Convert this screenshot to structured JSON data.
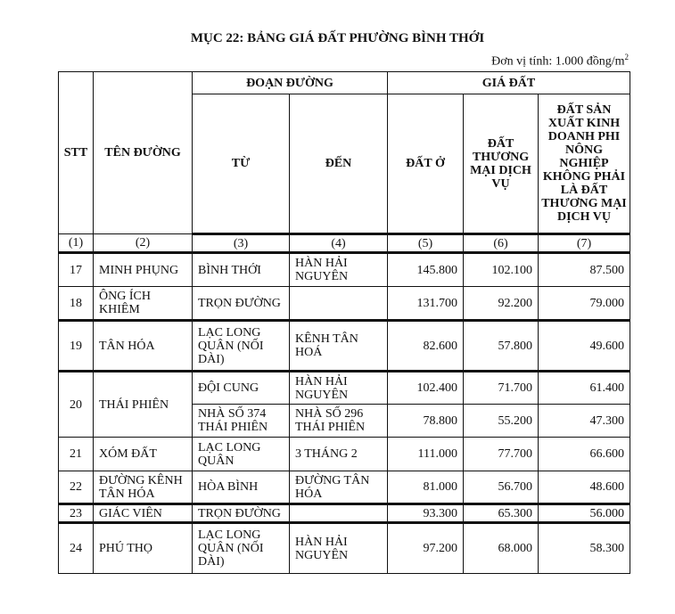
{
  "title": "MỤC 22: BẢNG GIÁ ĐẤT PHƯỜNG BÌNH THỚI",
  "unit": "Đơn vị tính: 1.000 đồng/m",
  "unit_sup": "2",
  "headers": {
    "stt": "STT",
    "ten_duong": "TÊN ĐƯỜNG",
    "doan_duong": "ĐOẠN ĐƯỜNG",
    "gia_dat": "GIÁ ĐẤT",
    "tu": "TỪ",
    "den": "ĐẾN",
    "dat_o": "ĐẤT Ở",
    "dat_tmdv": "ĐẤT THƯƠNG MẠI DỊCH VỤ",
    "dat_sxkd": "ĐẤT SẢN XUẤT KINH DOANH PHI NÔNG NGHIỆP KHÔNG PHẢI LÀ ĐẤT THƯƠNG MẠI DỊCH VỤ"
  },
  "col_numbers": [
    "(1)",
    "(2)",
    "(3)",
    "(4)",
    "(5)",
    "(6)",
    "(7)"
  ],
  "rows": [
    {
      "stt": "17",
      "ten": "MINH PHỤNG",
      "tu": "BÌNH THỚI",
      "den": "HÀN HẢI NGUYÊN",
      "o": "145.800",
      "tm": "102.100",
      "sx": "87.500"
    },
    {
      "stt": "18",
      "ten": "ÔNG ÍCH KHIÊM",
      "tu": "TRỌN ĐƯỜNG",
      "den": "",
      "o": "131.700",
      "tm": "92.200",
      "sx": "79.000"
    },
    {
      "stt": "19",
      "ten": "TÂN HÓA",
      "tu": "LẠC LONG QUÂN (NỐI DÀI)",
      "den": "KÊNH TÂN HOÁ",
      "o": "82.600",
      "tm": "57.800",
      "sx": "49.600"
    },
    {
      "stt": "20",
      "ten": "THÁI PHIÊN",
      "tu": "ĐỘI CUNG",
      "den": "HÀN HẢI NGUYÊN",
      "o": "102.400",
      "tm": "71.700",
      "sx": "61.400"
    },
    {
      "tu": "NHÀ SỐ 374 THÁI PHIÊN",
      "den": "NHÀ SỐ 296 THÁI PHIÊN",
      "o": "78.800",
      "tm": "55.200",
      "sx": "47.300"
    },
    {
      "stt": "21",
      "ten": "XÓM ĐẤT",
      "tu": "LẠC LONG QUÂN",
      "den": "3 THÁNG 2",
      "o": "111.000",
      "tm": "77.700",
      "sx": "66.600"
    },
    {
      "stt": "22",
      "ten": "ĐƯỜNG KÊNH TÂN HÓA",
      "tu": "HÒA BÌNH",
      "den": "ĐƯỜNG TÂN HÓA",
      "o": "81.000",
      "tm": "56.700",
      "sx": "48.600"
    },
    {
      "stt": "23",
      "ten": "GIÁC VIÊN",
      "tu": "TRỌN ĐƯỜNG",
      "den": "",
      "o": "93.300",
      "tm": "65.300",
      "sx": "56.000"
    },
    {
      "stt": "24",
      "ten": "PHÚ THỌ",
      "tu": "LẠC LONG QUÂN (NỐI DÀI)",
      "den": "HÀN HẢI NGUYÊN",
      "o": "97.200",
      "tm": "68.000",
      "sx": "58.300"
    }
  ]
}
